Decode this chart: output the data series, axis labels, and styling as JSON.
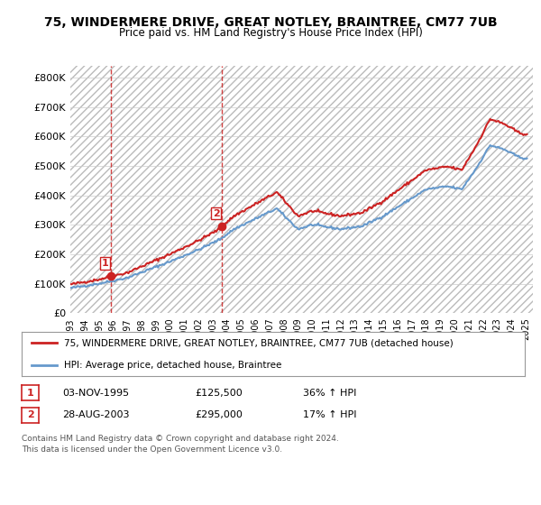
{
  "title": "75, WINDERMERE DRIVE, GREAT NOTLEY, BRAINTREE, CM77 7UB",
  "subtitle": "Price paid vs. HM Land Registry's House Price Index (HPI)",
  "yticks": [
    0,
    100000,
    200000,
    300000,
    400000,
    500000,
    600000,
    700000,
    800000
  ],
  "ytick_labels": [
    "£0",
    "£100K",
    "£200K",
    "£300K",
    "£400K",
    "£500K",
    "£600K",
    "£700K",
    "£800K"
  ],
  "ylim": [
    0,
    840000
  ],
  "xlim_start": 1993.0,
  "xlim_end": 2025.5,
  "hpi_color": "#6699cc",
  "price_color": "#cc2222",
  "sale1_x": 1995.84,
  "sale1_y": 125500,
  "sale2_x": 2003.65,
  "sale2_y": 295000,
  "sale1_label": "1",
  "sale2_label": "2",
  "legend_label_price": "75, WINDERMERE DRIVE, GREAT NOTLEY, BRAINTREE, CM77 7UB (detached house)",
  "legend_label_hpi": "HPI: Average price, detached house, Braintree",
  "footer_line1": "Contains HM Land Registry data © Crown copyright and database right 2024.",
  "footer_line2": "This data is licensed under the Open Government Licence v3.0.",
  "table_row1": [
    "1",
    "03-NOV-1995",
    "£125,500",
    "36% ↑ HPI"
  ],
  "table_row2": [
    "2",
    "28-AUG-2003",
    "£295,000",
    "17% ↑ HPI"
  ],
  "background_color": "#ffffff",
  "plot_bg_color": "#ffffff",
  "grid_color": "#cccccc",
  "hatch_color": "#dddddd"
}
